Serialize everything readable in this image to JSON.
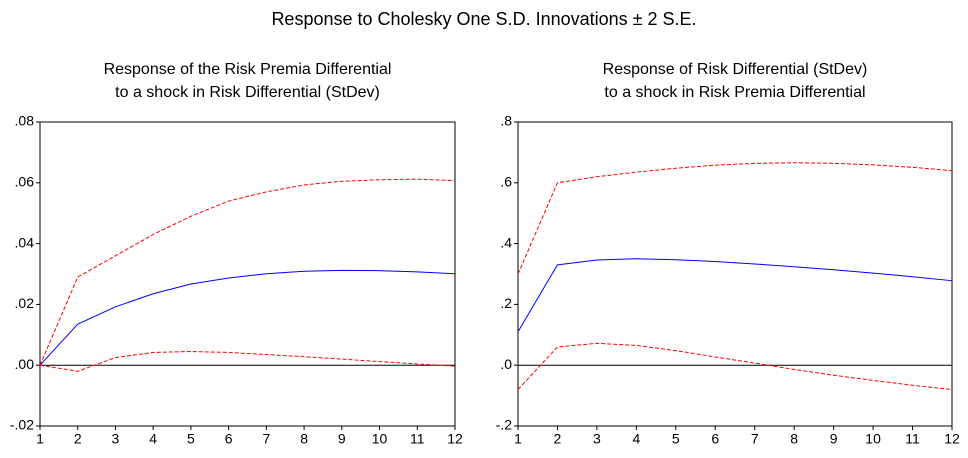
{
  "title": "Response to Cholesky One S.D. Innovations ± 2 S.E.",
  "chart_data": [
    {
      "type": "line",
      "title": [
        "Response of the Risk Premia Differential",
        "to a shock in Risk Differential (StDev)"
      ],
      "x": [
        1,
        2,
        3,
        4,
        5,
        6,
        7,
        8,
        9,
        10,
        11,
        12
      ],
      "xlim": [
        1,
        12
      ],
      "xticks": [
        1,
        2,
        3,
        4,
        5,
        6,
        7,
        8,
        9,
        10,
        11,
        12
      ],
      "ylim": [
        -0.02,
        0.08
      ],
      "yticks": [
        {
          "value": -0.02,
          "label": "-.02"
        },
        {
          "value": 0,
          "label": ".00"
        },
        {
          "value": 0.02,
          "label": ".02"
        },
        {
          "value": 0.04,
          "label": ".04"
        },
        {
          "value": 0.06,
          "label": ".06"
        },
        {
          "value": 0.08,
          "label": ".08"
        }
      ],
      "zero_line": true,
      "series": [
        {
          "color": "#0000ff",
          "dashed": false,
          "values": [
            0,
            0.0135,
            0.0192,
            0.0235,
            0.0267,
            0.0287,
            0.0301,
            0.0309,
            0.0312,
            0.0311,
            0.0307,
            0.0301
          ]
        },
        {
          "color": "#ff0000",
          "dashed": true,
          "values": [
            0,
            0.029,
            0.036,
            0.043,
            0.049,
            0.054,
            0.057,
            0.0593,
            0.0605,
            0.061,
            0.0612,
            0.0607
          ]
        },
        {
          "color": "#ff0000",
          "dashed": true,
          "values": [
            0,
            -0.002,
            0.0025,
            0.0042,
            0.0045,
            0.0042,
            0.0035,
            0.0028,
            0.002,
            0.0012,
            0.0004,
            -0.0003
          ]
        }
      ]
    },
    {
      "type": "line",
      "title": [
        "Response of Risk Differential (StDev)",
        "to a shock in Risk Premia Differential"
      ],
      "x": [
        1,
        2,
        3,
        4,
        5,
        6,
        7,
        8,
        9,
        10,
        11,
        12
      ],
      "xlim": [
        1,
        12
      ],
      "xticks": [
        1,
        2,
        3,
        4,
        5,
        6,
        7,
        8,
        9,
        10,
        11,
        12
      ],
      "ylim": [
        -0.2,
        0.8
      ],
      "yticks": [
        {
          "value": -0.2,
          "label": "-.2"
        },
        {
          "value": 0,
          "label": ".0"
        },
        {
          "value": 0.2,
          "label": ".2"
        },
        {
          "value": 0.4,
          "label": ".4"
        },
        {
          "value": 0.6,
          "label": ".6"
        },
        {
          "value": 0.8,
          "label": ".8"
        }
      ],
      "zero_line": true,
      "series": [
        {
          "color": "#0000ff",
          "dashed": false,
          "values": [
            0.11,
            0.33,
            0.346,
            0.35,
            0.347,
            0.341,
            0.333,
            0.324,
            0.314,
            0.303,
            0.291,
            0.278
          ]
        },
        {
          "color": "#ff0000",
          "dashed": true,
          "values": [
            0.3,
            0.6,
            0.62,
            0.635,
            0.648,
            0.658,
            0.664,
            0.666,
            0.664,
            0.659,
            0.651,
            0.64
          ]
        },
        {
          "color": "#ff0000",
          "dashed": true,
          "values": [
            -0.08,
            0.06,
            0.072,
            0.065,
            0.048,
            0.027,
            0.007,
            -0.014,
            -0.033,
            -0.05,
            -0.066,
            -0.08
          ]
        }
      ]
    }
  ]
}
